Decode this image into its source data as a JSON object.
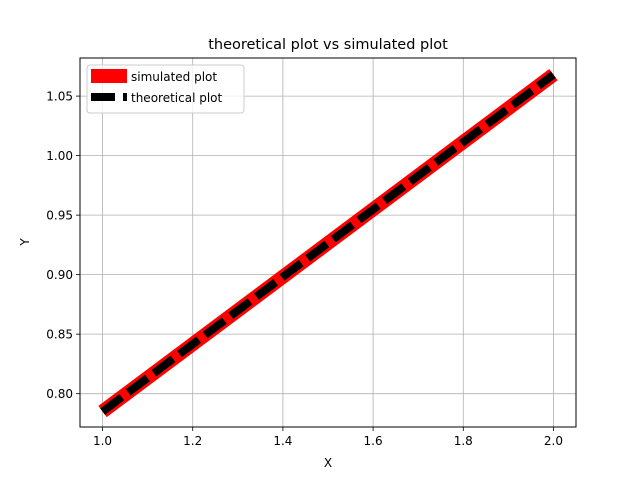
{
  "chart_data": {
    "type": "line",
    "title": "theoretical plot vs simulated plot",
    "xlabel": "X",
    "ylabel": "Y",
    "xlim": [
      0.95,
      2.05
    ],
    "ylim": [
      0.772,
      1.082
    ],
    "xticks": [
      1.0,
      1.2,
      1.4,
      1.6,
      1.8,
      2.0
    ],
    "xtick_labels": [
      "1.0",
      "1.2",
      "1.4",
      "1.6",
      "1.8",
      "2.0"
    ],
    "yticks": [
      0.8,
      0.85,
      0.9,
      0.95,
      1.0,
      1.05
    ],
    "ytick_labels": [
      "0.80",
      "0.85",
      "0.90",
      "0.95",
      "1.00",
      "1.05"
    ],
    "grid": true,
    "legend_position": "top-left",
    "series": [
      {
        "name": "simulated plot",
        "color": "#ff0000",
        "style": "solid",
        "x": [
          1.0,
          1.2,
          1.4,
          1.6,
          1.8,
          2.0
        ],
        "y": [
          0.785,
          0.8416,
          0.8982,
          0.9548,
          1.0114,
          1.068
        ]
      },
      {
        "name": "theoretical plot",
        "color": "#000000",
        "style": "dashed",
        "x": [
          1.0,
          1.2,
          1.4,
          1.6,
          1.8,
          2.0
        ],
        "y": [
          0.785,
          0.8416,
          0.8982,
          0.9548,
          1.0114,
          1.068
        ]
      }
    ]
  }
}
